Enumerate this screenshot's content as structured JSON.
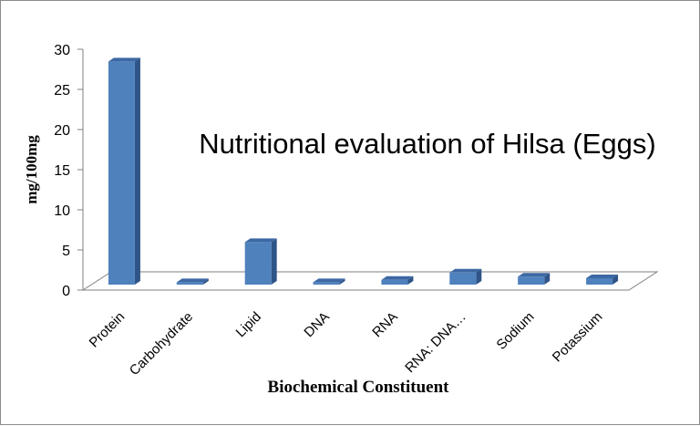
{
  "chart_data": {
    "type": "bar",
    "style": "3d-column",
    "title": "Nutritional evaluation of Hilsa (Eggs)",
    "xlabel": "Biochemical Constituent",
    "ylabel": "mg/100mg",
    "ylim": [
      0,
      30
    ],
    "yticks": [
      0,
      5,
      10,
      15,
      20,
      25,
      30
    ],
    "categories": [
      "Protein",
      "Carbohydrate",
      "Lipid",
      "DNA",
      "RNA",
      "RNA: DNA…",
      "Sodium",
      "Potassium"
    ],
    "values": [
      27.8,
      0.3,
      5.3,
      0.3,
      0.6,
      1.5,
      1.0,
      0.8
    ],
    "grid": false,
    "legend": "none",
    "colors": {
      "bar_front": "#4f81bd",
      "bar_side": "#2f5487",
      "bar_top": "#3c68a3",
      "floor": "#ffffff",
      "axis": "#808080"
    }
  }
}
